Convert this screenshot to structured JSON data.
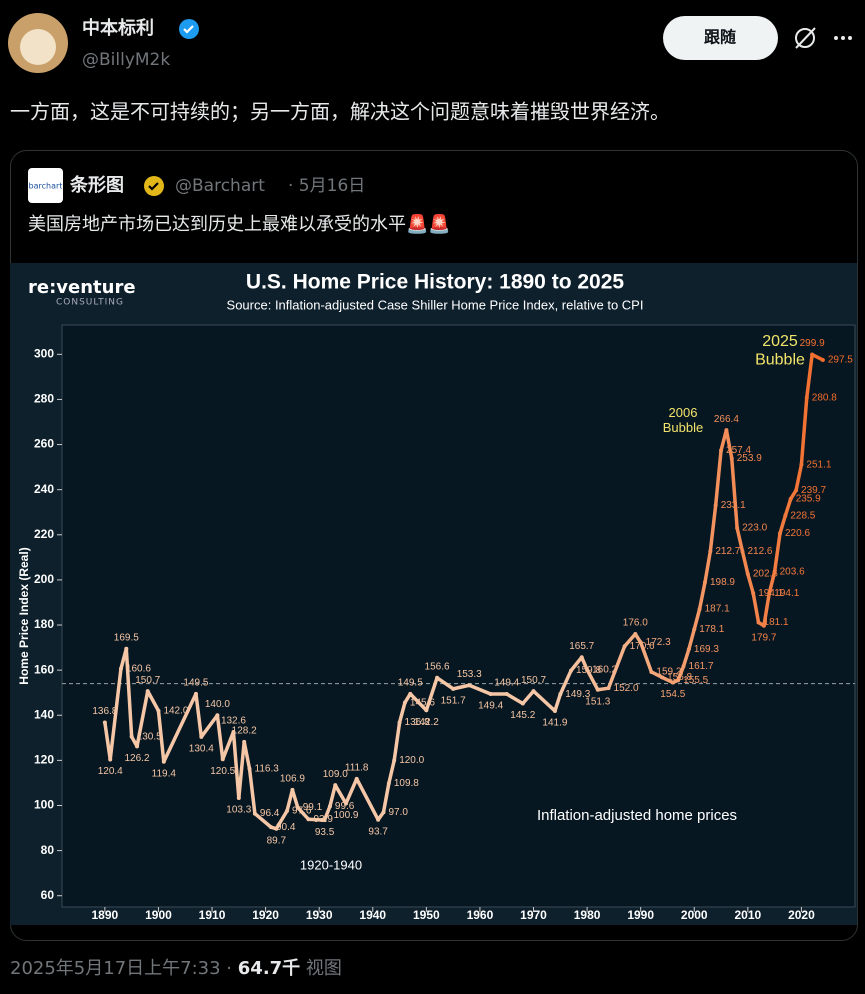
{
  "author": {
    "name": "中本标利",
    "handle": "@BillyM2k"
  },
  "follow_button": "跟随",
  "text": "一方面，这是不可持续的；另一方面，解决这个问题意味着摧毁世界经济。",
  "quoted": {
    "avatar_text": "barchart",
    "name": "条形图",
    "handle": "@Barchart",
    "date": "· 5月16日",
    "text": "美国房地产市场已达到历史上最难以承受的水平🚨🚨"
  },
  "footer": {
    "time": "2025年5月17日上午7:33 · ",
    "views": "64.7千",
    "views_label": " 视图"
  },
  "chart_data": {
    "type": "line",
    "logo": "re:venture",
    "logo_sub": "CONSULTING",
    "title": "U.S. Home Price History: 1890 to 2025",
    "subtitle": "Source: Inflation-adjusted Case Shiller Home Price Index, relative to CPI",
    "y_label": "Home Price Index (Real)",
    "annotations": [
      "2025\nBubble",
      "2006\nBubble",
      "1920-1940",
      "Inflation-adjusted home prices"
    ],
    "reference_value": 154,
    "xlim": [
      1882,
      2030
    ],
    "xticks": [
      1890,
      1900,
      1910,
      1920,
      1930,
      1940,
      1950,
      1960,
      1970,
      1980,
      1990,
      2000,
      2010,
      2020
    ],
    "ylim": [
      55,
      313
    ],
    "yticks": [
      60,
      80,
      100,
      120,
      140,
      160,
      180,
      200,
      220,
      240,
      260,
      280,
      300
    ],
    "series": [
      {
        "color": "#f6c7a6",
        "highlight_color": "#f26a28",
        "x": [
          1890,
          1891,
          1893,
          1894,
          1895,
          1896,
          1898,
          1900,
          1901,
          1907,
          1908,
          1911,
          1912,
          1914,
          1915,
          1916,
          1917,
          1918,
          1921,
          1922,
          1924,
          1925,
          1926,
          1928,
          1931,
          1932,
          1933,
          1935,
          1937,
          1941,
          1942,
          1943,
          1944,
          1945,
          1946,
          1947,
          1950,
          1952,
          1955,
          1958,
          1962,
          1965,
          1968,
          1970,
          1974,
          1975,
          1977,
          1979,
          1980,
          1982,
          1984,
          1987,
          1989,
          1990,
          1992,
          1994,
          1996,
          1997,
          1998,
          1999,
          2000,
          2001,
          2002,
          2003,
          2004,
          2005,
          2006,
          2007,
          2008,
          2009,
          2010,
          2011,
          2012,
          2013,
          2014,
          2015,
          2016,
          2017,
          2018,
          2019,
          2020,
          2021,
          2022,
          2024
        ],
        "values": [
          136.8,
          120.4,
          160.6,
          169.5,
          130.5,
          126.2,
          150.7,
          142.0,
          119.4,
          149.5,
          130.4,
          140.0,
          120.5,
          132.6,
          103.3,
          128.2,
          116.3,
          96.4,
          90.4,
          89.7,
          97.6,
          106.9,
          99.1,
          93.9,
          93.5,
          99.6,
          109.0,
          100.9,
          111.8,
          93.7,
          97.0,
          109.8,
          120.0,
          136.8,
          145.6,
          149.5,
          142.2,
          156.6,
          151.7,
          153.3,
          149.4,
          149.4,
          145.2,
          150.7,
          141.9,
          149.3,
          159.8,
          165.7,
          160.2,
          151.3,
          152.0,
          170.6,
          176.0,
          172.3,
          159.2,
          156.8,
          154.5,
          155.5,
          161.7,
          169.3,
          178.1,
          187.1,
          198.9,
          212.7,
          233.1,
          257.4,
          266.4,
          253.9,
          223.0,
          212.6,
          202.6,
          194.1,
          181.1,
          179.7,
          194.1,
          203.6,
          220.6,
          228.5,
          235.9,
          239.7,
          251.1,
          280.8,
          299.9,
          297.5
        ],
        "value_labels": [
          "136.8",
          "120.4",
          "160.6",
          "169.5",
          "130.5",
          "126.2",
          "150.7",
          "142.0",
          "119.4",
          "149.5",
          "130.4",
          "140.0",
          "120.5",
          "132.6",
          "103.3",
          "128.2",
          "116.3",
          "96.4",
          "90.4",
          "89.7",
          "97.6",
          "106.9",
          "99.1",
          "93.9",
          "93.5",
          "99.6",
          "109.0",
          "100.9",
          "111.8",
          "93.7",
          "97.0",
          "109.8",
          "120.0",
          "136.8",
          "145.6",
          "149.5",
          "142.2",
          "156.6",
          "151.7",
          "153.3",
          "149.4",
          "149.4",
          "145.2",
          "150.7",
          "141.9",
          "149.3",
          "159.8",
          "165.7",
          "160.2",
          "151.3",
          "152.0",
          "170.6",
          "176.0",
          "172.3",
          "159.2",
          "156.8",
          "154.5",
          "155.5",
          "161.7",
          "169.3",
          "178.1",
          "187.1",
          "198.9",
          "212.7",
          "233.1",
          "257.4",
          "266.4",
          "253.9",
          "223.0",
          "212.6",
          "202.6",
          "194.1",
          "181.1",
          "179.7",
          "194.1",
          "203.6",
          "220.6",
          "228.5",
          "235.9",
          "239.7",
          "251.1",
          "280.8",
          "299.9",
          "297.5"
        ]
      }
    ]
  }
}
